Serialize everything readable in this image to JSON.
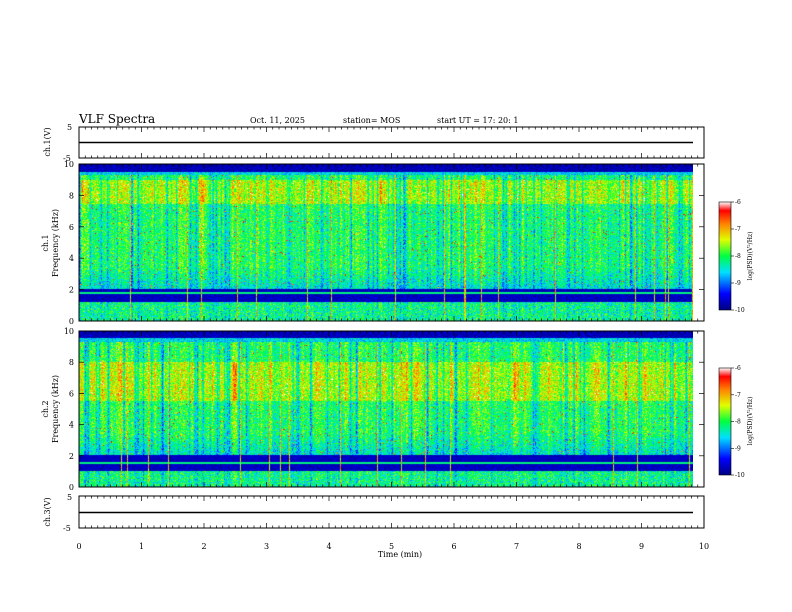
{
  "header": {
    "title": "VLF Spectra",
    "date": "Oct. 11, 2025",
    "station": "station= MOS",
    "start": "start  UT  =   17: 20: 1"
  },
  "chart_data": [
    {
      "type": "line",
      "panel": "ch1-waveform",
      "ylabel": "ch.1(V)",
      "ylim": [
        -5,
        5
      ],
      "yticks": [
        "5",
        "-5"
      ],
      "x_range_min": [
        0,
        9.83
      ],
      "series": [
        {
          "values_approx_constant": -1.2
        }
      ]
    },
    {
      "type": "heatmap",
      "panel": "ch1-spectrogram",
      "ylabel_line1": "ch.1",
      "ylabel_line2": "Frequency  (kHz)",
      "ylim": [
        0,
        10
      ],
      "yticks": [
        "0",
        "2",
        "4",
        "6",
        "8",
        "10"
      ],
      "x_range_min": [
        0,
        9.83
      ],
      "colorbar": {
        "label": "log(PSD)(V²/Hz)",
        "range": [
          -10,
          -6
        ],
        "ticks": [
          "-6",
          "-7",
          "-8",
          "-9",
          "-10"
        ]
      },
      "profile": {
        "dark_top_khz": [
          9.3,
          10.0
        ],
        "active_band_khz": [
          2.0,
          9.3
        ],
        "peak_band_khz": [
          7.5,
          9.0
        ],
        "dark_band_khz": [
          1.2,
          2.0
        ],
        "lower_band_khz": [
          0.0,
          1.2
        ],
        "line_khz": 1.75
      }
    },
    {
      "type": "heatmap",
      "panel": "ch2-spectrogram",
      "ylabel_line1": "ch.2",
      "ylabel_line2": "Frequency  (kHz)",
      "ylim": [
        0,
        10
      ],
      "yticks": [
        "0",
        "2",
        "4",
        "6",
        "8",
        "10"
      ],
      "x_range_min": [
        0,
        9.83
      ],
      "colorbar": {
        "label": "log(PSD)(V²/Hz)",
        "range": [
          -10,
          -6
        ],
        "ticks": [
          "-6",
          "-7",
          "-8",
          "-9",
          "-10"
        ]
      },
      "profile": {
        "dark_top_khz": [
          9.3,
          10.0
        ],
        "active_band_khz": [
          2.0,
          9.3
        ],
        "peak_band_khz": [
          5.5,
          8.0
        ],
        "dark_band_khz": [
          1.0,
          1.9
        ],
        "lower_band_khz": [
          0.0,
          1.0
        ],
        "line_khz": 1.5
      }
    },
    {
      "type": "line",
      "panel": "ch3-waveform",
      "ylabel": "ch.3(V)",
      "ylim": [
        -5,
        5
      ],
      "yticks": [
        "5",
        "-5"
      ],
      "x_range_min": [
        0,
        9.83
      ],
      "series": [
        {
          "values_approx_constant": -1.0
        }
      ]
    }
  ],
  "xaxis": {
    "label": "Time  (min)",
    "range": [
      0,
      10
    ],
    "ticks": [
      "0",
      "1",
      "2",
      "3",
      "4",
      "5",
      "6",
      "7",
      "8",
      "9",
      "10"
    ]
  }
}
